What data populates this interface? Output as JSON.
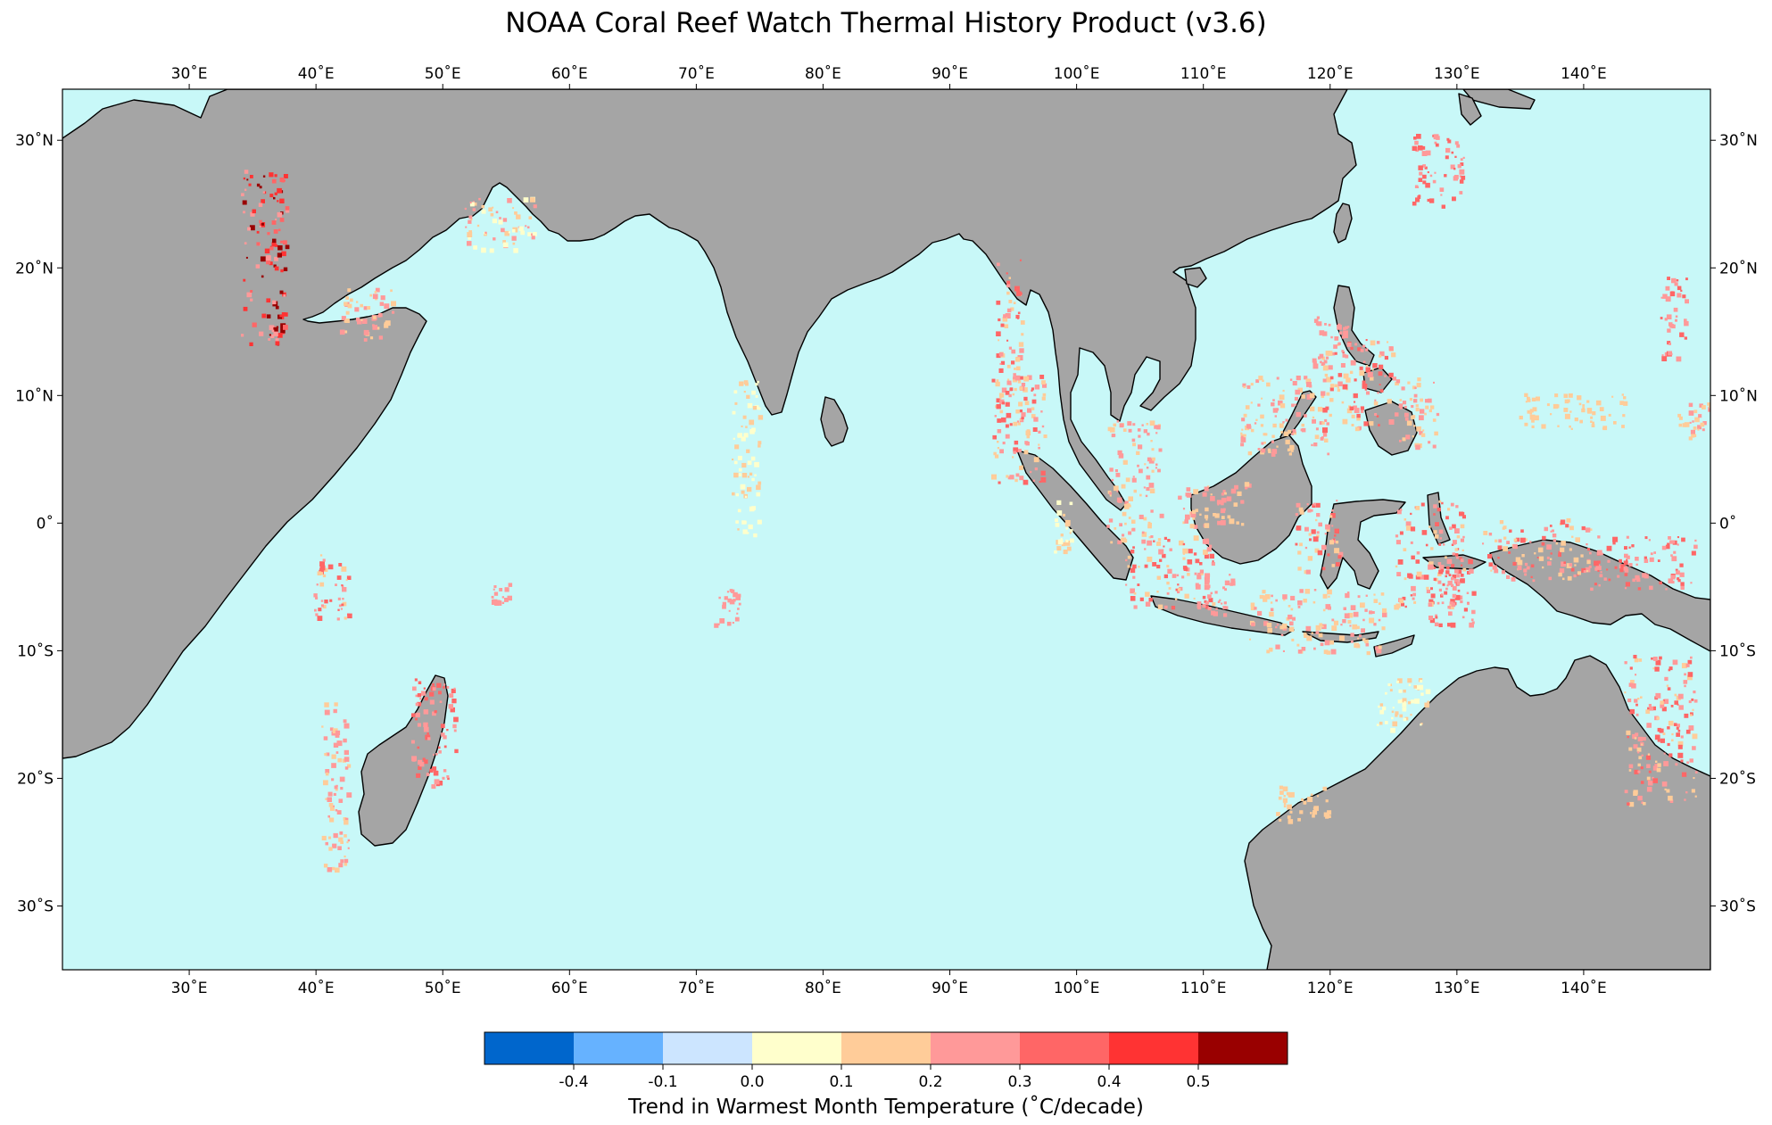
{
  "title": "NOAA Coral Reef Watch Thermal History Product (v3.6)",
  "map": {
    "lon_range": [
      20,
      150
    ],
    "lat_range": [
      -35,
      34
    ],
    "ocean_color": "#c8f8f8",
    "land_color": "#a5a5a5",
    "coast_color": "#000000",
    "lon_ticks": [
      {
        "value": 30,
        "label": "30˚E"
      },
      {
        "value": 40,
        "label": "40˚E"
      },
      {
        "value": 50,
        "label": "50˚E"
      },
      {
        "value": 60,
        "label": "60˚E"
      },
      {
        "value": 70,
        "label": "70˚E"
      },
      {
        "value": 80,
        "label": "80˚E"
      },
      {
        "value": 90,
        "label": "90˚E"
      },
      {
        "value": 100,
        "label": "100˚E"
      },
      {
        "value": 110,
        "label": "110˚E"
      },
      {
        "value": 120,
        "label": "120˚E"
      },
      {
        "value": 130,
        "label": "130˚E"
      },
      {
        "value": 140,
        "label": "140˚E"
      }
    ],
    "lat_ticks": [
      {
        "value": 30,
        "label": "30˚N"
      },
      {
        "value": 20,
        "label": "20˚N"
      },
      {
        "value": 10,
        "label": "10˚N"
      },
      {
        "value": 0,
        "label": "0˚"
      },
      {
        "value": -10,
        "label": "10˚S"
      },
      {
        "value": -20,
        "label": "20˚S"
      },
      {
        "value": -30,
        "label": "30˚S"
      }
    ]
  },
  "colorbar": {
    "title": "Trend in Warmest Month Temperature (˚C/decade)",
    "colors": [
      "#0066cc",
      "#66b2ff",
      "#cce5ff",
      "#ffffcc",
      "#ffcc99",
      "#ff9999",
      "#ff6666",
      "#ff3333",
      "#990000"
    ],
    "labels": [
      "-0.4",
      "-0.1",
      "0.0",
      "0.1",
      "0.2",
      "0.3",
      "0.4",
      "0.5"
    ]
  }
}
